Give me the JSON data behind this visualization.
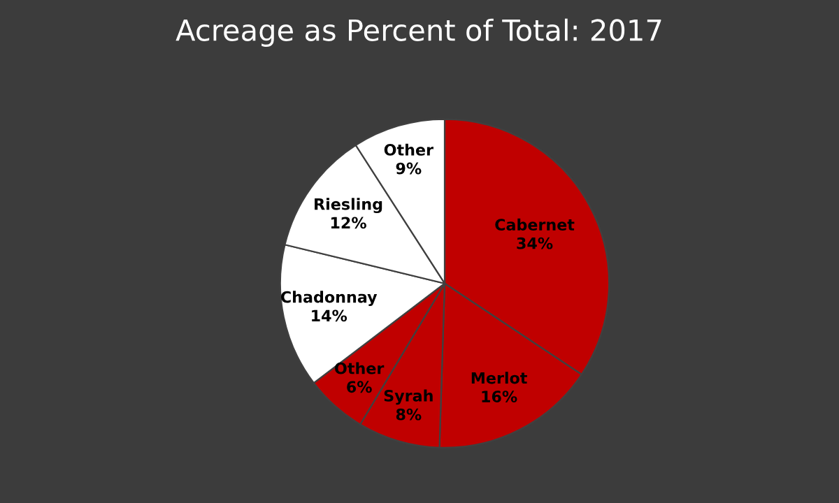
{
  "chart_data": {
    "type": "pie",
    "title": "Acreage as Percent of Total: 2017",
    "categories": [
      "Cabernet",
      "Merlot",
      "Syrah",
      "Other",
      "Chadonnay",
      "Riesling",
      "Other"
    ],
    "values": [
      34,
      16,
      8,
      6,
      14,
      12,
      9
    ],
    "value_labels": [
      "34%",
      "16%",
      "8%",
      "6%",
      "14%",
      "12%",
      "9%"
    ],
    "colors": [
      "#c00000",
      "#c00000",
      "#c00000",
      "#c00000",
      "#ffffff",
      "#ffffff",
      "#ffffff"
    ],
    "legend": false
  }
}
